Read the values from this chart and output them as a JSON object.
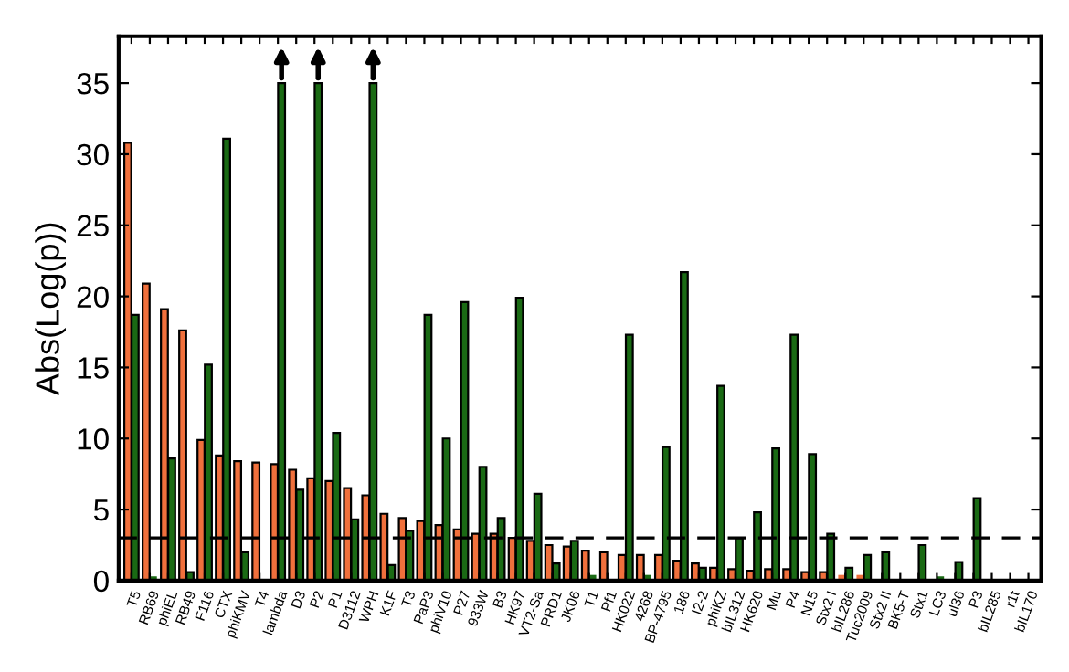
{
  "chart_data": {
    "type": "bar",
    "ylabel": "Abs(Log(p))",
    "categories": [
      "T5",
      "RB69",
      "phiEL",
      "RB49",
      "F116",
      "CTX",
      "phiKMV",
      "T4",
      "lambda",
      "D3",
      "P2",
      "P1",
      "D3112",
      "WPH",
      "K1F",
      "T3",
      "PaP3",
      "phiV10",
      "P27",
      "933W",
      "B3",
      "HK97",
      "VT2-Sa",
      "PRD1",
      "JK06",
      "T1",
      "Pf1",
      "HK022",
      "4268",
      "BP-4795",
      "186",
      "I2-2",
      "phiKZ",
      "bIL312",
      "HK620",
      "Mu",
      "P4",
      "N15",
      "Stx2 I",
      "bIL286",
      "Tuc2009",
      "Stx2 II",
      "BK5-T",
      "Stx1",
      "LC3",
      "ul36",
      "P3",
      "bIL285",
      "r1t",
      "bIL170"
    ],
    "series": [
      {
        "color": "#f0703c",
        "values": [
          30.8,
          20.9,
          19.1,
          17.6,
          9.9,
          8.8,
          8.4,
          8.3,
          8.2,
          7.8,
          7.2,
          7.0,
          6.5,
          6.0,
          4.7,
          4.4,
          4.2,
          3.9,
          3.6,
          3.3,
          3.3,
          3.0,
          2.8,
          2.5,
          2.4,
          2.1,
          2.0,
          1.8,
          1.8,
          1.8,
          1.4,
          1.2,
          0.9,
          0.8,
          0.7,
          0.8,
          0.8,
          0.6,
          0.6,
          0.4,
          0.4,
          null,
          0.1,
          null,
          null,
          null,
          null,
          null,
          null,
          null
        ]
      },
      {
        "color": "#1a6a14",
        "values": [
          18.7,
          0.3,
          8.6,
          0.6,
          15.2,
          31.1,
          2.0,
          null,
          35,
          6.4,
          35,
          10.4,
          4.3,
          35,
          1.1,
          3.5,
          18.7,
          10.0,
          19.6,
          8.0,
          4.4,
          19.9,
          6.1,
          1.2,
          2.8,
          0.4,
          0.1,
          17.3,
          0.4,
          9.4,
          21.7,
          0.9,
          13.7,
          3.0,
          4.8,
          9.3,
          17.3,
          8.9,
          3.3,
          0.9,
          1.8,
          2.0,
          0.1,
          2.5,
          0.3,
          1.3,
          5.8,
          null,
          null,
          null
        ]
      }
    ],
    "ylim": [
      0,
      38.3
    ],
    "yticks": [
      0,
      5,
      10,
      15,
      20,
      25,
      30,
      35
    ],
    "ref_lines": [
      {
        "axis": "y",
        "value": 3,
        "color": "#000000",
        "line_style": "dashed"
      }
    ],
    "grid": false,
    "legend": false
  }
}
